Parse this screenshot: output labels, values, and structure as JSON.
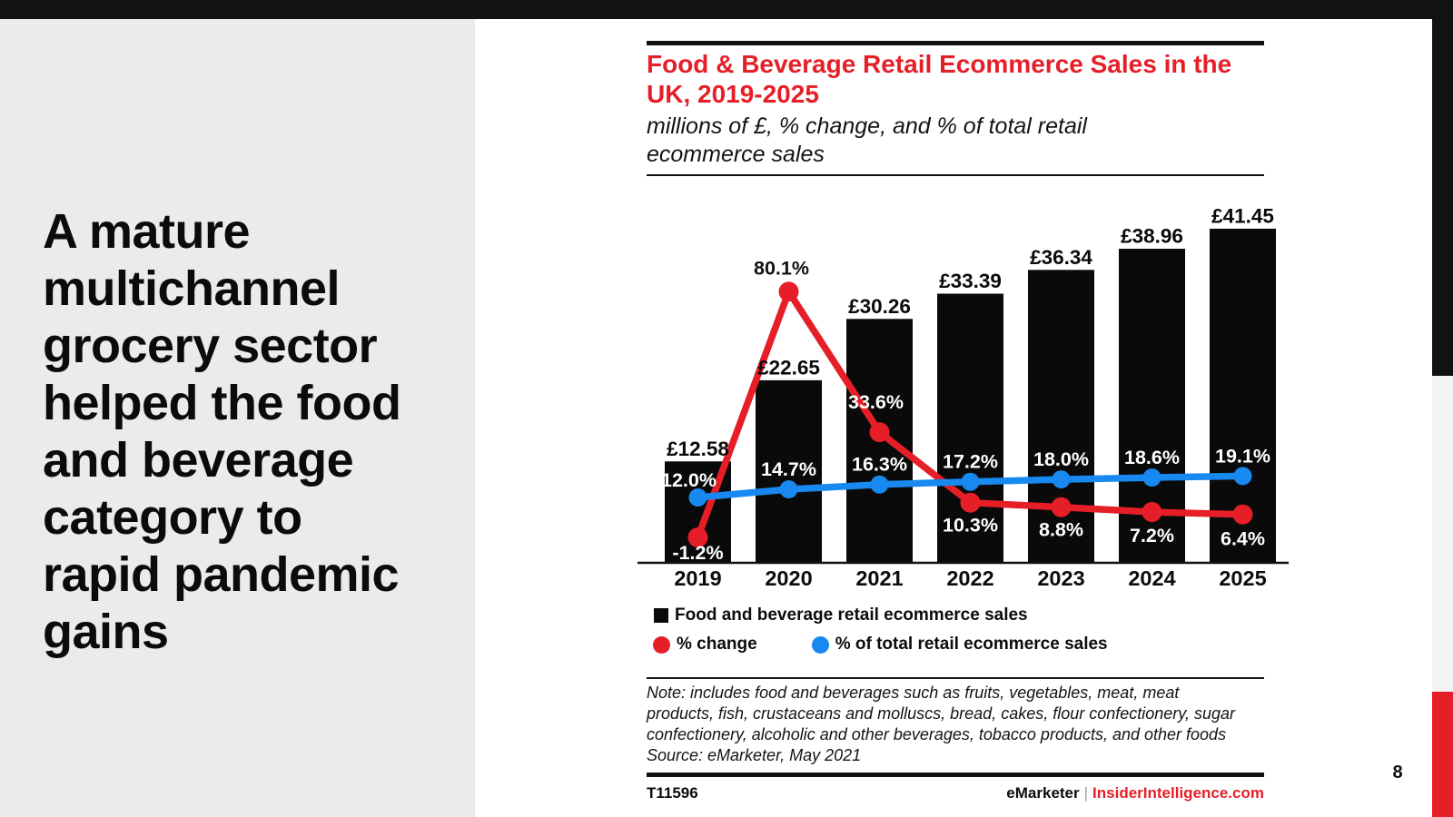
{
  "slide": {
    "headline": "A mature\nmultichannel\ngrocery sector\nhelped the food\nand beverage\ncategory to\nrapid pandemic\ngains",
    "page_number": "8",
    "footer": {
      "code": "T11596",
      "brand": "eMarketer",
      "separator": "|",
      "site": "InsiderIntelligence.com"
    }
  },
  "chart": {
    "title": "Food & Beverage Retail Ecommerce Sales in the\nUK, 2019-2025",
    "subtitle": "millions of £, % change, and % of total retail\necommerce sales",
    "note": "Note: includes food and beverages such as fruits, vegetables, meat, meat\nproducts, fish, crustaceans and molluscs, bread, cakes, flour confectionery, sugar\nconfectionery, alcoholic and other beverages, tobacco products, and other foods\nSource: eMarketer, May 2021"
  },
  "chart_data": {
    "type": "bar",
    "subtype": "bar-plus-two-lines-combo",
    "categories": [
      "2019",
      "2020",
      "2021",
      "2022",
      "2023",
      "2024",
      "2025"
    ],
    "series": [
      {
        "name": "Food and beverage retail ecommerce sales",
        "type": "bar",
        "color": "#0a0a0a",
        "value_prefix": "£",
        "values": [
          12.58,
          22.65,
          30.26,
          33.39,
          36.34,
          38.96,
          41.45
        ],
        "labels": [
          "£12.58",
          "£22.65",
          "£30.26",
          "£33.39",
          "£36.34",
          "£38.96",
          "£41.45"
        ]
      },
      {
        "name": "% change",
        "type": "line",
        "color": "#e61e28",
        "value_suffix": "%",
        "values": [
          -1.2,
          80.1,
          33.6,
          10.3,
          8.8,
          7.2,
          6.4
        ],
        "labels": [
          "-1.2%",
          "80.1%",
          "33.6%",
          "10.3%",
          "8.8%",
          "7.2%",
          "6.4%"
        ]
      },
      {
        "name": "% of total retail ecommerce sales",
        "type": "line",
        "color": "#1789f0",
        "value_suffix": "%",
        "values": [
          12.0,
          14.7,
          16.3,
          17.2,
          18.0,
          18.6,
          19.1
        ],
        "labels": [
          "12.0%",
          "14.7%",
          "16.3%",
          "17.2%",
          "18.0%",
          "18.6%",
          "19.1%"
        ]
      }
    ],
    "title": "Food & Beverage Retail Ecommerce Sales in the UK, 2019-2025",
    "xlabel": "",
    "ylabel": "",
    "grid": false,
    "legend_position": "bottom-left"
  },
  "colors": {
    "accent_red": "#e61e28",
    "accent_blue": "#1789f0",
    "bar_black": "#0a0a0a",
    "panel_gray": "#ebebeb",
    "strip_gray": "#f3f3f3",
    "background": "#ffffff"
  }
}
